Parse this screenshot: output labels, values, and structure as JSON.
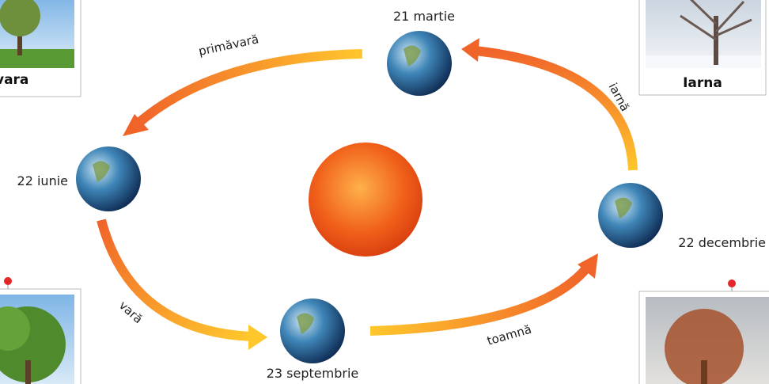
{
  "dates": [
    "21 martie",
    "22 iunie",
    "23 septembrie",
    "22 decembrie"
  ],
  "seasons": [
    "primăvară",
    "iarnă",
    "vară",
    "toamnă"
  ],
  "cards": [
    "vara",
    "Iarna"
  ]
}
